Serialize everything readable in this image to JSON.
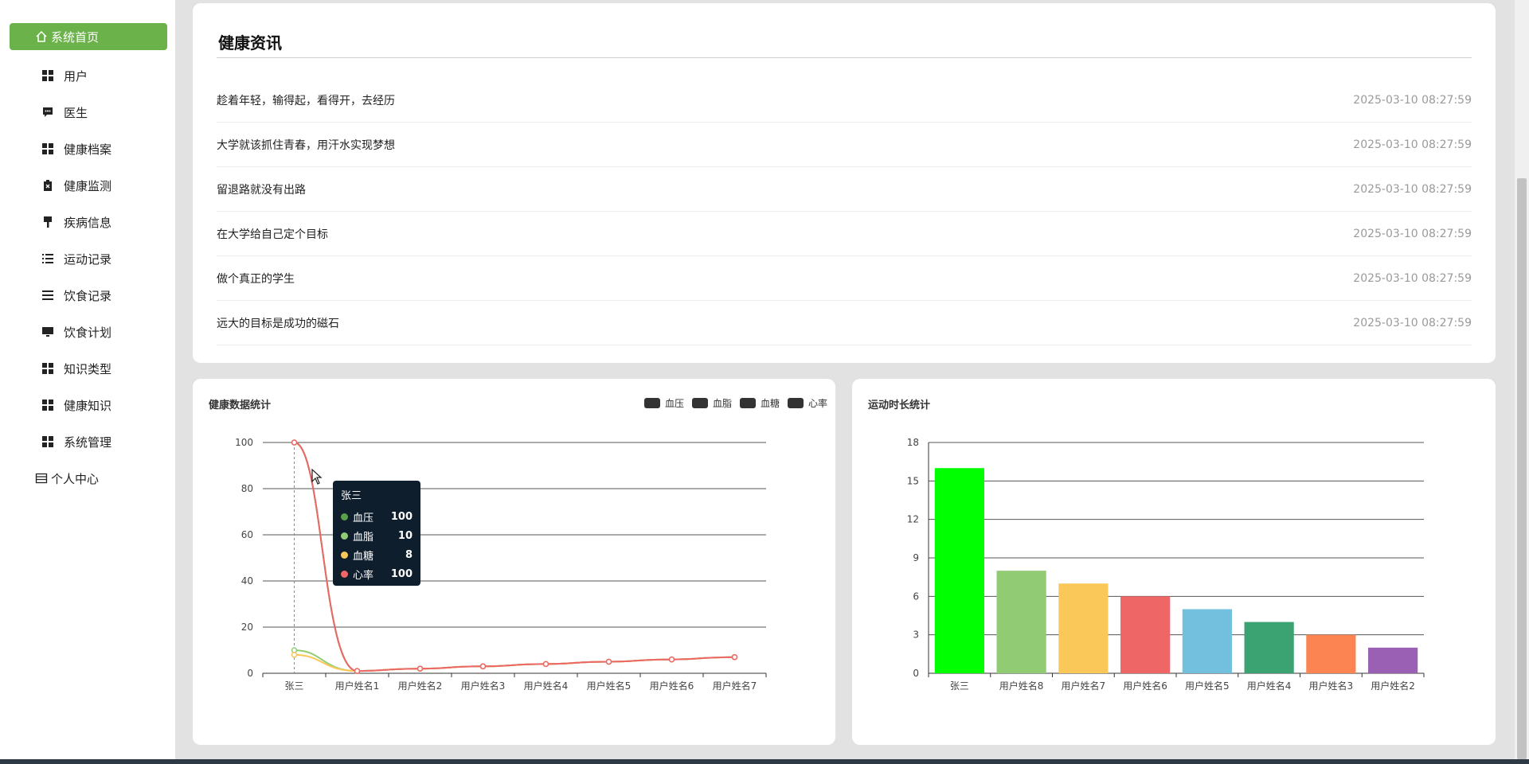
{
  "sidebar": {
    "items": [
      {
        "label": "系统首页",
        "icon": "home-icon",
        "active": true
      },
      {
        "label": "用户",
        "icon": "grid-icon"
      },
      {
        "label": "医生",
        "icon": "message-icon"
      },
      {
        "label": "健康档案",
        "icon": "grid-icon"
      },
      {
        "label": "健康监测",
        "icon": "clipboard-icon"
      },
      {
        "label": "疾病信息",
        "icon": "brush-icon"
      },
      {
        "label": "运动记录",
        "icon": "list-icon"
      },
      {
        "label": "饮食记录",
        "icon": "list-icon"
      },
      {
        "label": "饮食计划",
        "icon": "monitor-icon"
      },
      {
        "label": "知识类型",
        "icon": "grid-icon"
      },
      {
        "label": "健康知识",
        "icon": "grid-icon"
      },
      {
        "label": "系统管理",
        "icon": "grid-icon"
      },
      {
        "label": "个人中心",
        "icon": "window-icon"
      }
    ]
  },
  "news": {
    "title": "健康资讯",
    "items": [
      {
        "title": "趁着年轻，输得起，看得开，去经历",
        "date": "2025-03-10 08:27:59"
      },
      {
        "title": "大学就该抓住青春，用汗水实现梦想",
        "date": "2025-03-10 08:27:59"
      },
      {
        "title": "留退路就没有出路",
        "date": "2025-03-10 08:27:59"
      },
      {
        "title": "在大学给自己定个目标",
        "date": "2025-03-10 08:27:59"
      },
      {
        "title": "做个真正的学生",
        "date": "2025-03-10 08:27:59"
      },
      {
        "title": "远大的目标是成功的磁石",
        "date": "2025-03-10 08:27:59"
      }
    ]
  },
  "health_chart": {
    "title": "健康数据统计",
    "tooltip": {
      "title": "张三",
      "rows": [
        {
          "name": "血压",
          "value": "100",
          "color": "#5aa04a"
        },
        {
          "name": "血脂",
          "value": "10",
          "color": "#91cc75"
        },
        {
          "name": "血糖",
          "value": "8",
          "color": "#fac858"
        },
        {
          "name": "心率",
          "value": "100",
          "color": "#ee6666"
        }
      ]
    }
  },
  "exercise_chart": {
    "title": "运动时长统计"
  },
  "chart_data": [
    {
      "type": "line",
      "title": "健康数据统计",
      "categories": [
        "张三",
        "用户姓名1",
        "用户姓名2",
        "用户姓名3",
        "用户姓名4",
        "用户姓名5",
        "用户姓名6",
        "用户姓名7"
      ],
      "series": [
        {
          "name": "血压",
          "values": [
            100,
            1,
            2,
            3,
            4,
            5,
            6,
            7
          ],
          "color": "#5aa04a"
        },
        {
          "name": "血脂",
          "values": [
            10,
            1,
            2,
            3,
            4,
            5,
            6,
            7
          ],
          "color": "#91cc75"
        },
        {
          "name": "血糖",
          "values": [
            8,
            1,
            2,
            3,
            4,
            5,
            6,
            7
          ],
          "color": "#fac858"
        },
        {
          "name": "心率",
          "values": [
            100,
            1,
            2,
            3,
            4,
            5,
            6,
            7
          ],
          "color": "#ee6666"
        }
      ],
      "ylim": [
        0,
        100
      ],
      "yticks": [
        0,
        20,
        40,
        60,
        80,
        100
      ],
      "grid": true,
      "legend": "top-right",
      "smooth": true
    },
    {
      "type": "bar",
      "title": "运动时长统计",
      "categories": [
        "张三",
        "用户姓名8",
        "用户姓名7",
        "用户姓名6",
        "用户姓名5",
        "用户姓名4",
        "用户姓名3",
        "用户姓名2"
      ],
      "values": [
        16,
        8,
        7,
        6,
        5,
        4,
        3,
        2
      ],
      "colors": [
        "#00ff00",
        "#91cc75",
        "#fac858",
        "#ee6666",
        "#73c0de",
        "#3ba272",
        "#fc8452",
        "#9a60b4"
      ],
      "ylim": [
        0,
        18
      ],
      "yticks": [
        0,
        3,
        6,
        9,
        12,
        15,
        18
      ],
      "grid": true
    }
  ]
}
